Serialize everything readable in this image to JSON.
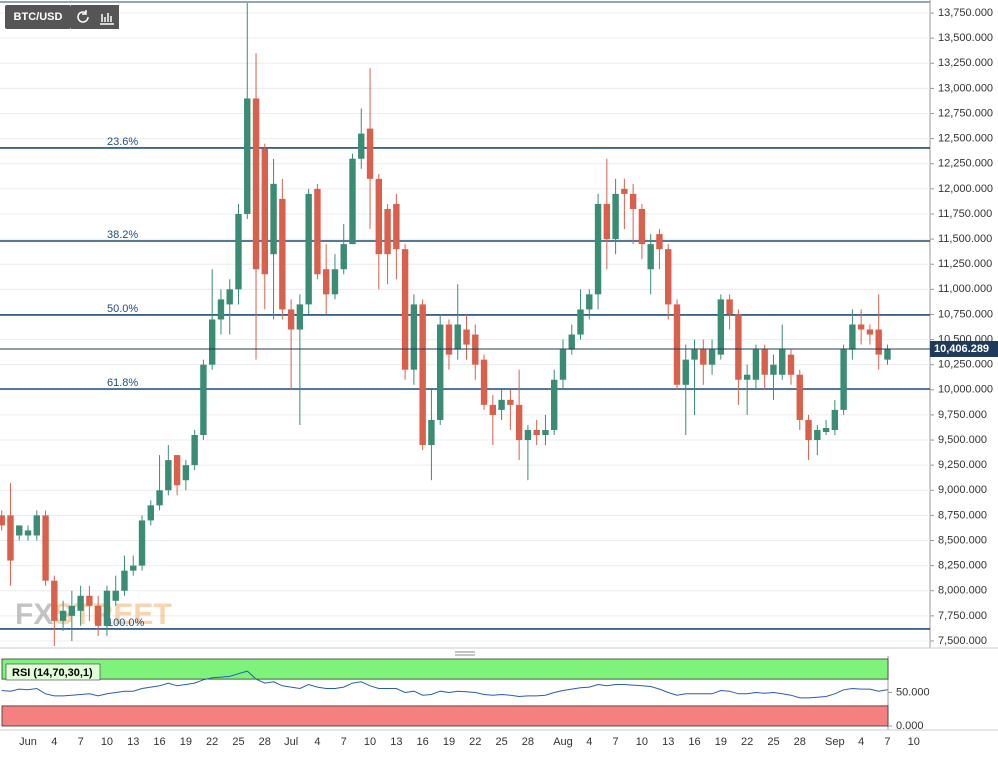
{
  "chart_data": [
    {
      "type": "candlestick",
      "title": "BTC/USD",
      "watermark": {
        "prefix": "FX",
        "suffix": "STREET"
      },
      "categories": [
        null,
        null,
        null,
        "Jun",
        null,
        null,
        "4",
        null,
        null,
        "7",
        null,
        null,
        "10",
        null,
        null,
        "13",
        null,
        null,
        "16",
        null,
        null,
        "19",
        null,
        null,
        "22",
        null,
        null,
        "25",
        null,
        null,
        "28",
        null,
        null,
        "Jul",
        null,
        null,
        "4",
        null,
        null,
        "7",
        null,
        null,
        "10",
        null,
        null,
        "13",
        null,
        null,
        "16",
        null,
        null,
        "19",
        null,
        null,
        "22",
        null,
        null,
        "25",
        null,
        null,
        "28",
        null,
        null,
        null,
        "Aug",
        null,
        null,
        "4",
        null,
        null,
        "7",
        null,
        null,
        "10",
        null,
        null,
        "13",
        null,
        null,
        "16",
        null,
        null,
        "19",
        null,
        null,
        "22",
        null,
        null,
        "25",
        null,
        null,
        "28",
        null,
        null,
        null,
        "Sep",
        null,
        null,
        "4",
        null,
        null,
        "7",
        null,
        null,
        "10"
      ],
      "open": [
        8750,
        8750,
        8550,
        8550,
        8550,
        8750,
        8100,
        7700,
        7750,
        7800,
        7950,
        7850,
        7650,
        7900,
        8000,
        8200,
        8250,
        8700,
        8850,
        9000,
        9350,
        9100,
        9250,
        9550,
        10250,
        10700,
        10850,
        11000,
        11750,
        12900,
        12400,
        11350,
        11900,
        10800,
        10600,
        10850,
        12000,
        11200,
        10950,
        11200,
        11450,
        12300,
        12600,
        12100,
        11800,
        11850,
        11400,
        10200,
        10850,
        9450,
        9700,
        10650,
        10400,
        10600,
        10550,
        10300,
        9850,
        9800,
        9900,
        9850,
        9500,
        9600,
        9550,
        9600,
        10100,
        10400,
        10550,
        10800,
        10950,
        11850,
        11500,
        12000,
        11950,
        11800,
        11200,
        11550,
        11400,
        10850,
        10050,
        10300,
        10400,
        10250,
        10350,
        10900,
        10750,
        10100,
        10100,
        10400,
        10150,
        10150,
        10350,
        10150,
        9700,
        9500,
        9580,
        9600,
        9800,
        10400,
        10650,
        10600,
        10600,
        10300,
        null,
        null,
        null
      ],
      "high": [
        8800,
        9070,
        8650,
        8650,
        8800,
        8800,
        8150,
        7900,
        8000,
        8050,
        8050,
        7950,
        8050,
        8150,
        8350,
        8350,
        8750,
        8900,
        9350,
        9450,
        9350,
        9300,
        9600,
        10300,
        11200,
        11000,
        11100,
        11850,
        13850,
        13350,
        12450,
        12300,
        12100,
        10900,
        10950,
        12000,
        12050,
        11450,
        11350,
        11650,
        12350,
        12800,
        13200,
        12150,
        11850,
        11950,
        11450,
        10950,
        10900,
        10000,
        10750,
        10700,
        11050,
        10750,
        10650,
        10350,
        9950,
        10000,
        10000,
        10200,
        9650,
        9700,
        9750,
        10200,
        10500,
        10650,
        11000,
        11000,
        11950,
        12300,
        12100,
        12100,
        12050,
        11850,
        11550,
        11600,
        11450,
        10900,
        10450,
        10500,
        10500,
        10500,
        10950,
        10950,
        10800,
        10250,
        10450,
        10450,
        10350,
        10650,
        10400,
        10200,
        9750,
        9650,
        9700,
        9900,
        10450,
        10800,
        10800,
        10650,
        10950,
        10450,
        null,
        null,
        null
      ],
      "low": [
        8600,
        8050,
        8500,
        8500,
        8500,
        8050,
        7450,
        7600,
        7500,
        7650,
        7700,
        7550,
        7550,
        7850,
        7950,
        8150,
        8200,
        8650,
        8800,
        8950,
        8950,
        9000,
        9200,
        9500,
        10200,
        10550,
        10550,
        10850,
        11700,
        10300,
        10800,
        10700,
        10700,
        10000,
        9650,
        10750,
        11100,
        10750,
        10900,
        11150,
        11450,
        12200,
        11600,
        11000,
        11050,
        11100,
        10100,
        10050,
        9400,
        9100,
        9650,
        10200,
        10300,
        10300,
        10100,
        9800,
        9450,
        9700,
        9600,
        9300,
        9100,
        9450,
        9450,
        9550,
        10000,
        10350,
        10500,
        10700,
        10800,
        11200,
        11350,
        11600,
        11450,
        11300,
        10950,
        11200,
        10700,
        10000,
        9550,
        9750,
        10050,
        10150,
        10300,
        10600,
        9850,
        9750,
        10000,
        10000,
        9900,
        10100,
        10050,
        9600,
        9300,
        9350,
        9550,
        9550,
        9750,
        10300,
        10450,
        10450,
        10200,
        10250,
        null,
        null,
        null
      ],
      "close": [
        8650,
        8300,
        8650,
        8600,
        8750,
        8100,
        7700,
        7800,
        7850,
        7950,
        7850,
        7650,
        8000,
        8000,
        8200,
        8250,
        8700,
        8850,
        9000,
        9300,
        9050,
        9250,
        9550,
        10250,
        10700,
        10900,
        11000,
        11750,
        12900,
        11200,
        11150,
        12050,
        10800,
        10600,
        10850,
        11950,
        11150,
        10950,
        11200,
        11450,
        12300,
        12550,
        12100,
        11350,
        11350,
        11400,
        10200,
        10850,
        9450,
        9700,
        10650,
        10350,
        10650,
        10450,
        10250,
        9850,
        9750,
        9900,
        9850,
        9500,
        9600,
        9550,
        9600,
        10100,
        10400,
        10550,
        10800,
        10950,
        11850,
        11500,
        11950,
        11950,
        11800,
        11450,
        11450,
        11400,
        10850,
        10050,
        10300,
        10400,
        10250,
        10400,
        10900,
        10750,
        10100,
        10150,
        10400,
        10150,
        10250,
        10400,
        10150,
        9700,
        9500,
        9600,
        9620,
        9800,
        10400,
        10650,
        10600,
        10550,
        10350,
        10406.289,
        null,
        null,
        null
      ],
      "up_color": "#3a8c74",
      "down_color": "#d8604c",
      "ylim": [
        7430,
        13860
      ],
      "yticks": [
        {
          "value": 7500,
          "label": "7,500.000"
        },
        {
          "value": 7750,
          "label": "7,750.000"
        },
        {
          "value": 8000,
          "label": "8,000.000"
        },
        {
          "value": 8250,
          "label": "8,250.000"
        },
        {
          "value": 8500,
          "label": "8,500.000"
        },
        {
          "value": 8750,
          "label": "8,750.000"
        },
        {
          "value": 9000,
          "label": "9,000.000"
        },
        {
          "value": 9250,
          "label": "9,250.000"
        },
        {
          "value": 9500,
          "label": "9,500.000"
        },
        {
          "value": 9750,
          "label": "9,750.000"
        },
        {
          "value": 10000,
          "label": "10,000.000"
        },
        {
          "value": 10250,
          "label": "10,250.000"
        },
        {
          "value": 10500,
          "label": "10,500.000"
        },
        {
          "value": 10750,
          "label": "10,750.000"
        },
        {
          "value": 11000,
          "label": "11,000.000"
        },
        {
          "value": 11250,
          "label": "11,250.000"
        },
        {
          "value": 11500,
          "label": "11,500.000"
        },
        {
          "value": 11750,
          "label": "11,750.000"
        },
        {
          "value": 12000,
          "label": "12,000.000"
        },
        {
          "value": 12250,
          "label": "12,250.000"
        },
        {
          "value": 12500,
          "label": "12,500.000"
        },
        {
          "value": 12750,
          "label": "12,750.000"
        },
        {
          "value": 13000,
          "label": "13,000.000"
        },
        {
          "value": 13250,
          "label": "13,250.000"
        },
        {
          "value": 13500,
          "label": "13,500.000"
        },
        {
          "value": 13750,
          "label": "13,750.000"
        }
      ],
      "grid": true,
      "fib_levels": [
        {
          "value": 12407,
          "label": "23.6%"
        },
        {
          "value": 11481,
          "label": "38.2%"
        },
        {
          "value": 10745,
          "label": "50.0%"
        },
        {
          "value": 10008,
          "label": "61.8%"
        },
        {
          "value": 7620,
          "label": "100.0%"
        }
      ],
      "fib_color": "#1f4e79",
      "last_price": {
        "value": 10406.289,
        "label": "10,406.289"
      }
    },
    {
      "type": "line",
      "title": "RSI (14,70,30,1)",
      "color": "#2a5db0",
      "values": [
        53,
        52,
        55,
        54,
        56,
        48,
        45,
        45,
        46,
        47,
        48,
        45,
        48,
        50,
        52,
        52,
        56,
        58,
        60,
        64,
        60,
        62,
        64,
        69,
        72,
        73,
        74,
        78,
        82,
        70,
        64,
        66,
        60,
        58,
        56,
        62,
        58,
        56,
        56,
        58,
        64,
        66,
        60,
        56,
        56,
        56,
        50,
        52,
        46,
        47,
        52,
        50,
        52,
        51,
        50,
        47,
        46,
        47,
        46,
        44,
        45,
        45,
        46,
        50,
        53,
        55,
        57,
        58,
        62,
        60,
        62,
        62,
        61,
        60,
        59,
        55,
        50,
        46,
        48,
        48,
        48,
        48,
        53,
        52,
        48,
        48,
        50,
        49,
        50,
        48,
        46,
        42,
        42,
        43,
        44,
        48,
        54,
        56,
        55,
        55,
        52,
        54,
        null,
        null,
        null
      ],
      "ylim": [
        0,
        100
      ],
      "yticks": [
        {
          "value": 0,
          "label": "0.000"
        },
        {
          "value": 50,
          "label": "50.000"
        }
      ],
      "overbought": 70,
      "oversold": 30,
      "overbought_color": "#7ff27c",
      "oversold_color": "#f58080"
    }
  ]
}
